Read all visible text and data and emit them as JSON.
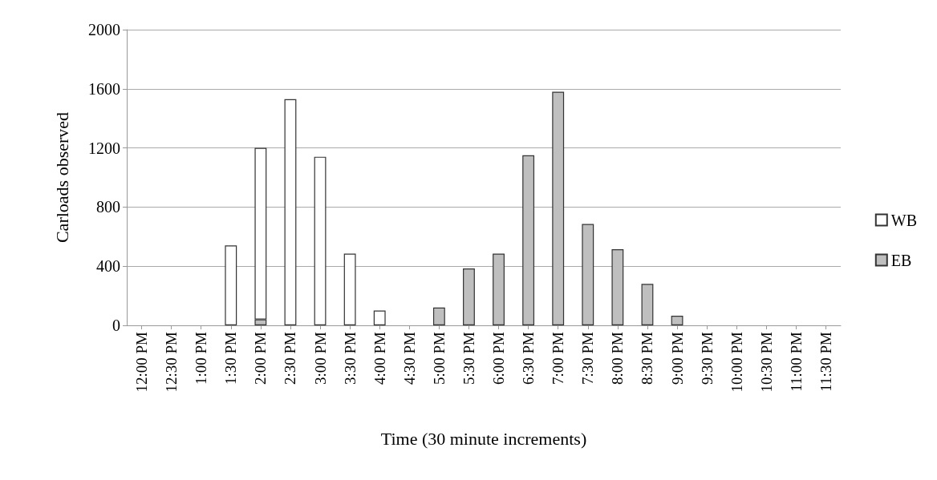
{
  "chart_data": {
    "type": "bar",
    "stacked": true,
    "xlabel": "Time (30 minute increments)",
    "ylabel": "Carloads observed",
    "categories": [
      "12:00 PM",
      "12:30 PM",
      "1:00 PM",
      "1:30 PM",
      "2:00 PM",
      "2:30 PM",
      "3:00 PM",
      "3:30 PM",
      "4:00 PM",
      "4:30 PM",
      "5:00 PM",
      "5:30 PM",
      "6:00 PM",
      "6:30 PM",
      "7:00 PM",
      "7:30 PM",
      "8:00 PM",
      "8:30 PM",
      "9:00 PM",
      "9:30 PM",
      "10:00 PM",
      "10:30 PM",
      "11:00 PM",
      "11:30 PM"
    ],
    "series": [
      {
        "name": "EB",
        "color": "#bfbfbf",
        "values": [
          0,
          0,
          0,
          0,
          40,
          0,
          0,
          0,
          0,
          0,
          120,
          385,
          485,
          1150,
          1580,
          685,
          515,
          280,
          65,
          0,
          0,
          0,
          0,
          0
        ]
      },
      {
        "name": "WB",
        "color": "#ffffff",
        "values": [
          0,
          0,
          0,
          540,
          1160,
          1530,
          1140,
          485,
          100,
          0,
          0,
          0,
          0,
          0,
          0,
          0,
          0,
          0,
          0,
          0,
          0,
          0,
          0,
          0
        ]
      }
    ],
    "ylim": [
      0,
      2000
    ],
    "yticks": [
      0,
      400,
      800,
      1200,
      1600,
      2000
    ],
    "grid": "y",
    "legend": "right"
  }
}
